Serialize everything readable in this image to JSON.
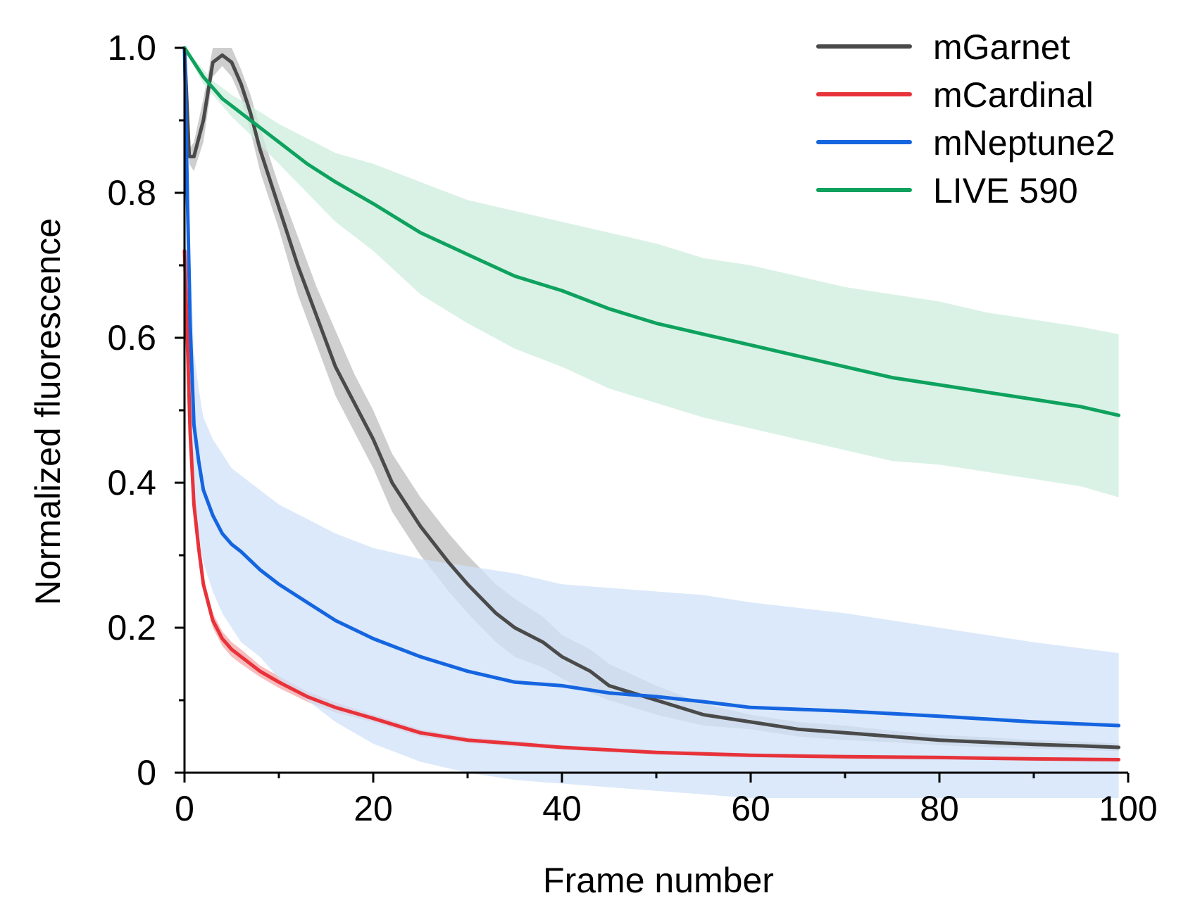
{
  "chart_data": {
    "type": "line",
    "title": "",
    "xlabel": "Frame number",
    "ylabel": "Normalized fluorescence",
    "xlim": [
      0,
      100
    ],
    "ylim": [
      0,
      1.0
    ],
    "x_ticks": [
      0,
      20,
      40,
      60,
      80,
      100
    ],
    "x_tick_labels": [
      "0",
      "20",
      "40",
      "60",
      "80",
      "100"
    ],
    "y_ticks": [
      0,
      0.2,
      0.4,
      0.6,
      0.8,
      1.0
    ],
    "y_tick_labels": [
      "0",
      "0.2",
      "0.4",
      "0.6",
      "0.8",
      "1.0"
    ],
    "grid": false,
    "legend_position": "top-right",
    "series": [
      {
        "name": "mGarnet",
        "color": "#4a4a4a",
        "band_color": "#bdbdbd",
        "x": [
          0,
          0.5,
          1,
          2,
          3,
          4,
          5,
          6,
          7,
          8,
          10,
          12,
          14,
          16,
          18,
          20,
          22,
          25,
          28,
          30,
          33,
          35,
          38,
          40,
          43,
          45,
          50,
          55,
          60,
          65,
          70,
          75,
          80,
          85,
          90,
          95,
          99
        ],
        "y": [
          1.0,
          0.85,
          0.85,
          0.9,
          0.98,
          0.99,
          0.98,
          0.95,
          0.91,
          0.86,
          0.78,
          0.7,
          0.63,
          0.56,
          0.51,
          0.46,
          0.4,
          0.34,
          0.29,
          0.26,
          0.22,
          0.2,
          0.18,
          0.16,
          0.14,
          0.12,
          0.1,
          0.08,
          0.07,
          0.06,
          0.055,
          0.05,
          0.045,
          0.042,
          0.039,
          0.037,
          0.035
        ],
        "lower": [
          1.0,
          0.84,
          0.83,
          0.87,
          0.96,
          0.975,
          0.96,
          0.93,
          0.885,
          0.83,
          0.75,
          0.66,
          0.59,
          0.52,
          0.47,
          0.42,
          0.36,
          0.3,
          0.25,
          0.22,
          0.18,
          0.16,
          0.145,
          0.13,
          0.11,
          0.1,
          0.08,
          0.065,
          0.06,
          0.05,
          0.045,
          0.042,
          0.038,
          0.035,
          0.033,
          0.031,
          0.03
        ],
        "upper": [
          1.0,
          0.86,
          0.87,
          0.93,
          1.0,
          1.0,
          1.0,
          0.97,
          0.935,
          0.89,
          0.81,
          0.74,
          0.67,
          0.61,
          0.55,
          0.5,
          0.44,
          0.38,
          0.33,
          0.3,
          0.26,
          0.24,
          0.215,
          0.19,
          0.17,
          0.15,
          0.12,
          0.095,
          0.08,
          0.07,
          0.065,
          0.058,
          0.052,
          0.049,
          0.045,
          0.043,
          0.04
        ]
      },
      {
        "name": "mCardinal",
        "color": "#e8323a",
        "band_color": "#f4a5a8",
        "x": [
          0,
          0.3,
          0.6,
          1,
          1.5,
          2,
          3,
          4,
          5,
          6,
          8,
          10,
          13,
          16,
          20,
          25,
          30,
          35,
          40,
          50,
          60,
          70,
          80,
          90,
          99
        ],
        "y": [
          0.72,
          0.6,
          0.47,
          0.37,
          0.31,
          0.26,
          0.21,
          0.185,
          0.17,
          0.16,
          0.14,
          0.125,
          0.105,
          0.09,
          0.075,
          0.055,
          0.045,
          0.04,
          0.035,
          0.028,
          0.024,
          0.022,
          0.021,
          0.019,
          0.018
        ],
        "lower": [
          0.7,
          0.58,
          0.45,
          0.355,
          0.295,
          0.25,
          0.2,
          0.175,
          0.16,
          0.15,
          0.132,
          0.117,
          0.098,
          0.083,
          0.07,
          0.05,
          0.041,
          0.036,
          0.032,
          0.025,
          0.021,
          0.019,
          0.018,
          0.017,
          0.016
        ],
        "upper": [
          0.74,
          0.62,
          0.49,
          0.385,
          0.325,
          0.27,
          0.22,
          0.195,
          0.18,
          0.17,
          0.148,
          0.133,
          0.112,
          0.097,
          0.08,
          0.06,
          0.049,
          0.044,
          0.038,
          0.031,
          0.027,
          0.025,
          0.024,
          0.021,
          0.02
        ]
      },
      {
        "name": "mNeptune2",
        "color": "#1565e0",
        "band_color": "#cfe2f8",
        "x": [
          0,
          0.3,
          0.6,
          1,
          1.5,
          2,
          3,
          4,
          5,
          6,
          8,
          10,
          13,
          16,
          20,
          25,
          30,
          35,
          40,
          45,
          50,
          55,
          60,
          70,
          80,
          90,
          99
        ],
        "y": [
          1.0,
          0.8,
          0.62,
          0.48,
          0.43,
          0.39,
          0.355,
          0.33,
          0.315,
          0.305,
          0.28,
          0.26,
          0.235,
          0.21,
          0.185,
          0.16,
          0.14,
          0.125,
          0.12,
          0.11,
          0.105,
          0.098,
          0.09,
          0.085,
          0.078,
          0.07,
          0.065
        ],
        "lower": [
          0.98,
          0.75,
          0.52,
          0.38,
          0.33,
          0.29,
          0.25,
          0.22,
          0.2,
          0.18,
          0.16,
          0.13,
          0.1,
          0.07,
          0.04,
          0.015,
          0.0,
          -0.01,
          -0.015,
          -0.02,
          -0.025,
          -0.03,
          -0.035,
          -0.035,
          -0.035,
          -0.035,
          -0.035
        ],
        "upper": [
          1.0,
          0.85,
          0.72,
          0.58,
          0.53,
          0.49,
          0.46,
          0.44,
          0.42,
          0.41,
          0.39,
          0.37,
          0.35,
          0.33,
          0.31,
          0.295,
          0.285,
          0.275,
          0.26,
          0.255,
          0.25,
          0.245,
          0.235,
          0.22,
          0.2,
          0.18,
          0.165
        ]
      },
      {
        "name": "LIVE 590",
        "color": "#0ea25e",
        "band_color": "#cdeedd",
        "x": [
          0,
          1,
          2,
          3,
          4,
          5,
          7,
          10,
          13,
          16,
          20,
          25,
          30,
          35,
          40,
          45,
          50,
          55,
          60,
          65,
          70,
          75,
          80,
          85,
          90,
          95,
          99
        ],
        "y": [
          1.0,
          0.98,
          0.96,
          0.945,
          0.93,
          0.92,
          0.9,
          0.87,
          0.84,
          0.815,
          0.785,
          0.745,
          0.715,
          0.685,
          0.665,
          0.64,
          0.62,
          0.605,
          0.59,
          0.575,
          0.56,
          0.545,
          0.535,
          0.525,
          0.515,
          0.505,
          0.493
        ],
        "lower": [
          1.0,
          0.975,
          0.95,
          0.935,
          0.92,
          0.905,
          0.88,
          0.84,
          0.8,
          0.76,
          0.72,
          0.66,
          0.62,
          0.585,
          0.56,
          0.53,
          0.51,
          0.49,
          0.475,
          0.46,
          0.445,
          0.43,
          0.425,
          0.415,
          0.405,
          0.395,
          0.38
        ],
        "upper": [
          1.0,
          0.985,
          0.97,
          0.955,
          0.945,
          0.935,
          0.92,
          0.895,
          0.875,
          0.855,
          0.84,
          0.815,
          0.79,
          0.775,
          0.76,
          0.745,
          0.73,
          0.71,
          0.7,
          0.685,
          0.67,
          0.66,
          0.65,
          0.635,
          0.625,
          0.615,
          0.605
        ]
      }
    ]
  }
}
